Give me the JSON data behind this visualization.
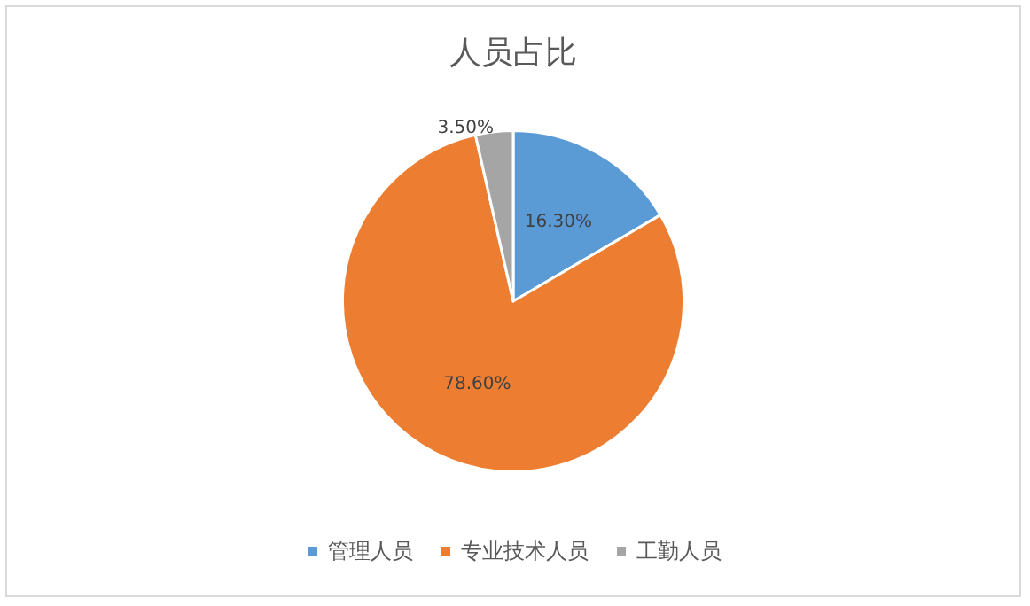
{
  "chart_data": {
    "type": "pie",
    "title": "人员占比",
    "categories": [
      "管理人员",
      "专业技术人员",
      "工勤人员"
    ],
    "values": [
      16.3,
      78.6,
      3.5
    ],
    "colors": [
      "#5b9bd5",
      "#ed7d31",
      "#a5a5a5"
    ],
    "value_labels": [
      "16.30%",
      "78.60%",
      "3.50%"
    ],
    "legend": "bottom"
  }
}
